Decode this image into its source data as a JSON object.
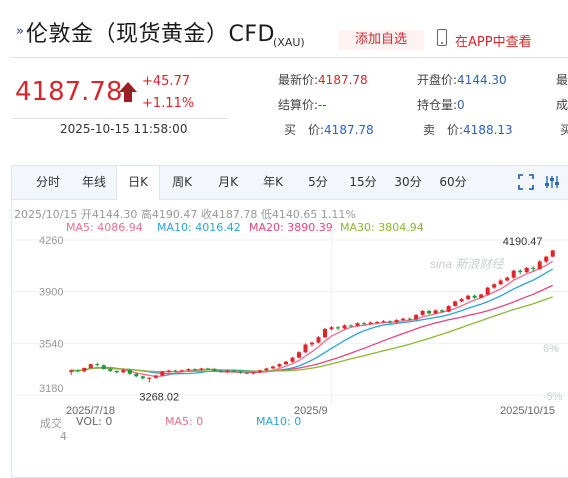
{
  "header": {
    "title": "伦敦金（现货黄金）CFD",
    "title_sub": "(XAU)",
    "add_watch": "添加自选",
    "app_link": "在APP中查看"
  },
  "quote": {
    "price": "4187.78",
    "change": "+45.77",
    "change_pct": "+1.11%",
    "time": "2025-10-15 11:58:00",
    "fields": [
      {
        "label": "最新价:",
        "value": "4187.78",
        "red": true
      },
      {
        "label": "开盘价:",
        "value": "4144.30",
        "red": false
      },
      {
        "label": "最",
        "value": "",
        "red": false
      },
      {
        "label": "结算价:",
        "value": "--",
        "red": false
      },
      {
        "label": "持仓量:",
        "value": "0",
        "red": false
      },
      {
        "label": "成",
        "value": "",
        "red": false
      },
      {
        "label": "买　价:",
        "value": "4187.78",
        "red": false
      },
      {
        "label": "卖　价:",
        "value": "4188.13",
        "red": false
      },
      {
        "label": "买",
        "value": "",
        "red": false
      }
    ]
  },
  "tabs": [
    "分时",
    "年线",
    "日K",
    "周K",
    "月K",
    "年K",
    "5分",
    "15分",
    "30分",
    "60分"
  ],
  "active_tab": "日K",
  "chart_info": {
    "date": "2025/10/15",
    "open_label": "开",
    "open": "4144.30",
    "high_label": "高",
    "high": "4190.47",
    "close_label": "收",
    "close": "4187.78",
    "low_label": "低",
    "low": "4140.65",
    "pct": "1.11%",
    "ma5": "MA5: 4086.94",
    "ma10": "MA10: 4016.42",
    "ma20": "MA20: 3890.39",
    "ma30": "MA30: 3804.94",
    "vol_prefix": "成交",
    "vol_value": "VOL: 0",
    "vol_unit": "4",
    "vol_ma5": "MA5: 0",
    "vol_ma10": "MA10: 0",
    "watermark": "sina 新浪财经"
  },
  "colors": {
    "up": "#e0262b",
    "down": "#1e9a3c",
    "ma5": "#f06d8d",
    "ma10": "#2aa5d6",
    "ma20": "#e6467a",
    "ma30": "#8cb836"
  },
  "chart_data": {
    "type": "candlestick",
    "y_ticks": [
      "4260",
      "3900",
      "3540",
      "3180"
    ],
    "right_ticks": [
      "6%",
      "-5%"
    ],
    "x_ticks": [
      "2025/7/18",
      "2025/9",
      "2025/10/15"
    ],
    "ylim": [
      3180,
      4260
    ],
    "max_label": "4190.47",
    "min_label": "3268.02",
    "candles": [
      [
        3340,
        3352,
        3320,
        3358
      ],
      [
        3352,
        3345,
        3338,
        3360
      ],
      [
        3345,
        3368,
        3340,
        3372
      ],
      [
        3368,
        3395,
        3362,
        3398
      ],
      [
        3395,
        3388,
        3380,
        3405
      ],
      [
        3388,
        3362,
        3355,
        3392
      ],
      [
        3362,
        3348,
        3340,
        3368
      ],
      [
        3348,
        3338,
        3330,
        3352
      ],
      [
        3338,
        3354,
        3332,
        3360
      ],
      [
        3354,
        3328,
        3320,
        3358
      ],
      [
        3328,
        3310,
        3305,
        3332
      ],
      [
        3310,
        3296,
        3288,
        3315
      ],
      [
        3296,
        3300,
        3268,
        3305
      ],
      [
        3300,
        3315,
        3292,
        3320
      ],
      [
        3315,
        3342,
        3310,
        3348
      ],
      [
        3342,
        3350,
        3335,
        3356
      ],
      [
        3350,
        3346,
        3338,
        3356
      ],
      [
        3346,
        3352,
        3340,
        3358
      ],
      [
        3352,
        3360,
        3346,
        3366
      ],
      [
        3360,
        3358,
        3350,
        3366
      ],
      [
        3358,
        3365,
        3352,
        3370
      ],
      [
        3365,
        3362,
        3355,
        3370
      ],
      [
        3362,
        3348,
        3342,
        3366
      ],
      [
        3348,
        3340,
        3335,
        3352
      ],
      [
        3340,
        3350,
        3334,
        3356
      ],
      [
        3350,
        3345,
        3338,
        3355
      ],
      [
        3345,
        3335,
        3328,
        3350
      ],
      [
        3335,
        3330,
        3325,
        3340
      ],
      [
        3330,
        3338,
        3324,
        3344
      ],
      [
        3338,
        3352,
        3332,
        3356
      ],
      [
        3352,
        3365,
        3346,
        3370
      ],
      [
        3365,
        3378,
        3360,
        3384
      ],
      [
        3378,
        3395,
        3372,
        3400
      ],
      [
        3395,
        3412,
        3388,
        3418
      ],
      [
        3412,
        3440,
        3405,
        3446
      ],
      [
        3440,
        3478,
        3435,
        3485
      ],
      [
        3478,
        3532,
        3472,
        3540
      ],
      [
        3532,
        3545,
        3518,
        3552
      ],
      [
        3545,
        3582,
        3540,
        3590
      ],
      [
        3582,
        3640,
        3576,
        3648
      ],
      [
        3640,
        3652,
        3630,
        3660
      ],
      [
        3652,
        3644,
        3630,
        3660
      ],
      [
        3644,
        3665,
        3638,
        3672
      ],
      [
        3665,
        3662,
        3652,
        3672
      ],
      [
        3662,
        3680,
        3656,
        3686
      ],
      [
        3680,
        3676,
        3668,
        3690
      ],
      [
        3676,
        3685,
        3670,
        3692
      ],
      [
        3685,
        3688,
        3680,
        3696
      ],
      [
        3688,
        3694,
        3682,
        3702
      ],
      [
        3694,
        3686,
        3676,
        3700
      ],
      [
        3686,
        3702,
        3680,
        3708
      ],
      [
        3702,
        3712,
        3694,
        3718
      ],
      [
        3712,
        3706,
        3698,
        3720
      ],
      [
        3706,
        3738,
        3700,
        3744
      ],
      [
        3738,
        3766,
        3732,
        3772
      ],
      [
        3766,
        3748,
        3740,
        3774
      ],
      [
        3748,
        3770,
        3744,
        3776
      ],
      [
        3770,
        3760,
        3752,
        3778
      ],
      [
        3760,
        3800,
        3756,
        3806
      ],
      [
        3800,
        3832,
        3796,
        3838
      ],
      [
        3832,
        3848,
        3826,
        3856
      ],
      [
        3848,
        3872,
        3840,
        3878
      ],
      [
        3872,
        3858,
        3850,
        3880
      ],
      [
        3858,
        3880,
        3852,
        3886
      ],
      [
        3880,
        3928,
        3876,
        3934
      ],
      [
        3928,
        3952,
        3920,
        3958
      ],
      [
        3952,
        3978,
        3946,
        3986
      ],
      [
        3978,
        3998,
        3970,
        4006
      ],
      [
        3998,
        4046,
        3990,
        4054
      ],
      [
        4046,
        4036,
        4020,
        4056
      ],
      [
        4036,
        4066,
        4030,
        4072
      ],
      [
        4066,
        4058,
        4040,
        4078
      ],
      [
        4058,
        4110,
        4052,
        4120
      ],
      [
        4110,
        4144,
        4100,
        4150
      ],
      [
        4144,
        4188,
        4141,
        4190
      ]
    ]
  }
}
